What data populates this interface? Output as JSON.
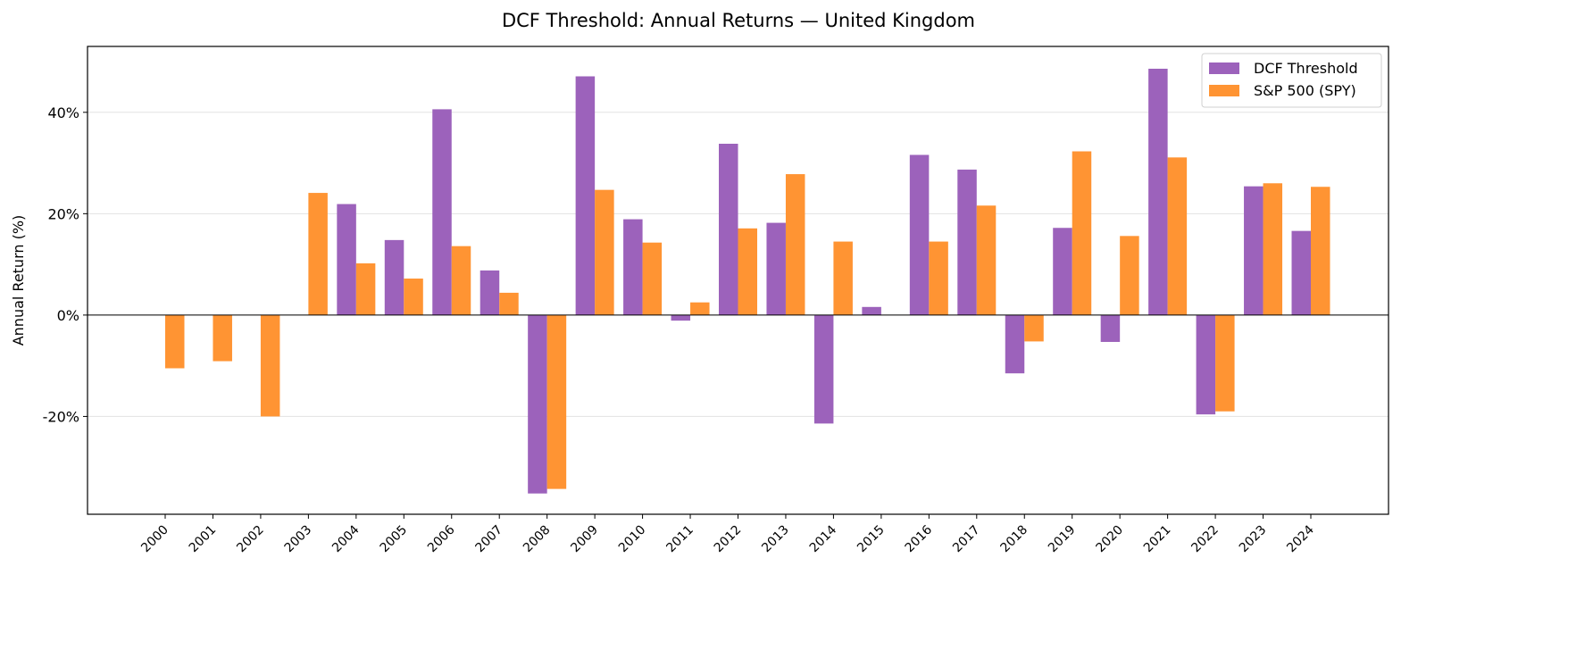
{
  "chart_data": {
    "type": "bar",
    "title": "DCF Threshold: Annual Returns — United Kingdom",
    "xlabel": "",
    "ylabel": "Annual Return (%)",
    "ylim": [
      -39.3,
      53
    ],
    "yticks": [
      -20,
      0,
      20,
      40
    ],
    "ytick_labels": [
      "-20%",
      "0%",
      "20%",
      "40%"
    ],
    "grid": "horizontal",
    "legend_placement": "top-right",
    "categories": [
      "2000",
      "2001",
      "2002",
      "2003",
      "2004",
      "2005",
      "2006",
      "2007",
      "2008",
      "2009",
      "2010",
      "2011",
      "2012",
      "2013",
      "2014",
      "2015",
      "2016",
      "2017",
      "2018",
      "2019",
      "2020",
      "2021",
      "2022",
      "2023",
      "2024"
    ],
    "series": [
      {
        "name": "DCF Threshold",
        "color": "#9c62bb",
        "values": [
          0,
          0,
          0,
          0,
          21.9,
          14.8,
          40.6,
          8.8,
          -35.2,
          47.1,
          18.9,
          -1.1,
          33.8,
          18.2,
          -21.4,
          1.6,
          31.6,
          28.7,
          -11.5,
          17.2,
          -5.3,
          48.6,
          -19.6,
          25.4,
          16.6
        ]
      },
      {
        "name": "S&P 500 (SPY)",
        "color": "#ff9433",
        "values": [
          -10.5,
          -9.1,
          -20.0,
          24.1,
          10.2,
          7.2,
          13.6,
          4.4,
          -34.3,
          24.7,
          14.3,
          2.5,
          17.1,
          27.8,
          14.5,
          0,
          14.5,
          21.6,
          -5.2,
          32.3,
          15.6,
          31.1,
          -19.0,
          26.0,
          25.3
        ]
      }
    ]
  }
}
